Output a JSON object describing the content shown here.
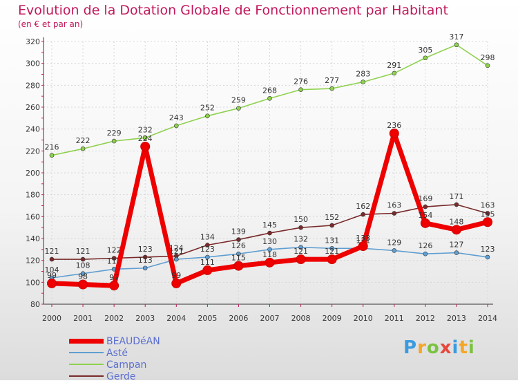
{
  "header": {
    "title": "Evolution de la Dotation Globale de Fonctionnement par Habitant",
    "subtitle": "(en € et par an)"
  },
  "chart_data": {
    "type": "line",
    "title": "Evolution de la Dotation Globale de Fonctionnement par Habitant",
    "subtitle": "(en € et par an)",
    "xlabel": "",
    "ylabel": "",
    "ylim": [
      80,
      320
    ],
    "yticks": [
      80,
      100,
      120,
      140,
      160,
      180,
      200,
      220,
      240,
      260,
      280,
      300,
      320
    ],
    "grid": true,
    "legend_position": "bottom-left",
    "categories": [
      "2000",
      "2001",
      "2002",
      "2003",
      "2004",
      "2005",
      "2006",
      "2007",
      "2008",
      "2009",
      "2010",
      "2011",
      "2012",
      "2013",
      "2014"
    ],
    "series": [
      {
        "name": "Campan",
        "color": "#8fd14f",
        "values": [
          216,
          222,
          229,
          232,
          243,
          252,
          259,
          268,
          276,
          277,
          283,
          291,
          305,
          317,
          298
        ]
      },
      {
        "name": "Gerde",
        "color": "#7a2a2a",
        "values": [
          121,
          121,
          122,
          123,
          124,
          134,
          139,
          145,
          150,
          152,
          162,
          163,
          169,
          171,
          163
        ]
      },
      {
        "name": "Asté",
        "color": "#5f9ed1",
        "values": [
          104,
          108,
          112,
          113,
          121,
          123,
          126,
          130,
          132,
          131,
          131,
          129,
          126,
          127,
          123
        ]
      },
      {
        "name": "BEAUDéAN",
        "color": "#ee0000",
        "values": [
          99,
          98,
          97,
          224,
          99,
          111,
          115,
          118,
          121,
          121,
          133,
          236,
          154,
          148,
          155
        ]
      }
    ]
  },
  "legend": {
    "items": [
      {
        "label": "BEAUDéAN",
        "color": "#ee0000",
        "thick": 7
      },
      {
        "label": "Asté",
        "color": "#5f9ed1",
        "thick": 2
      },
      {
        "label": "Campan",
        "color": "#8fd14f",
        "thick": 2
      },
      {
        "label": "Gerde",
        "color": "#7a2a2a",
        "thick": 2
      }
    ]
  },
  "logo": {
    "letters": [
      "P",
      "r",
      "o",
      "x",
      "i",
      "t",
      "i"
    ],
    "colors": [
      "#3a9be0",
      "#f5a623",
      "#7cc242",
      "#e8483b",
      "#3a9be0",
      "#f5a623",
      "#7cc242"
    ]
  }
}
